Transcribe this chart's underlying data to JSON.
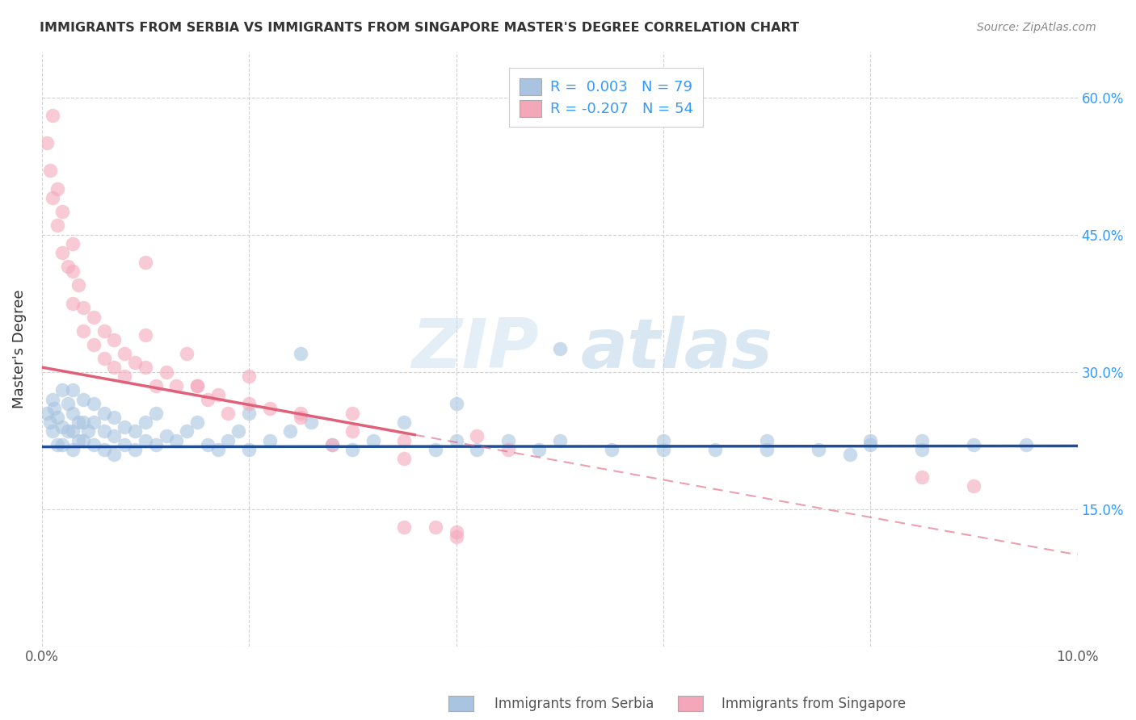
{
  "title": "IMMIGRANTS FROM SERBIA VS IMMIGRANTS FROM SINGAPORE MASTER'S DEGREE CORRELATION CHART",
  "source": "Source: ZipAtlas.com",
  "ylabel": "Master's Degree",
  "x_min": 0.0,
  "x_max": 0.1,
  "y_min": 0.0,
  "y_max": 0.65,
  "x_ticks": [
    0.0,
    0.02,
    0.04,
    0.06,
    0.08,
    0.1
  ],
  "y_ticks": [
    0.0,
    0.15,
    0.3,
    0.45,
    0.6
  ],
  "serbia_R": 0.003,
  "serbia_N": 79,
  "singapore_R": -0.207,
  "singapore_N": 54,
  "serbia_color": "#a8c4e0",
  "singapore_color": "#f4a7b9",
  "serbia_line_color": "#1f4e96",
  "singapore_line_color": "#e0607a",
  "serbia_scatter_x": [
    0.0005,
    0.0008,
    0.001,
    0.001,
    0.0012,
    0.0015,
    0.0015,
    0.002,
    0.002,
    0.002,
    0.0025,
    0.0025,
    0.003,
    0.003,
    0.003,
    0.003,
    0.0035,
    0.0035,
    0.004,
    0.004,
    0.004,
    0.0045,
    0.005,
    0.005,
    0.005,
    0.006,
    0.006,
    0.006,
    0.007,
    0.007,
    0.007,
    0.008,
    0.008,
    0.009,
    0.009,
    0.01,
    0.01,
    0.011,
    0.011,
    0.012,
    0.013,
    0.014,
    0.015,
    0.016,
    0.017,
    0.018,
    0.019,
    0.02,
    0.02,
    0.022,
    0.024,
    0.025,
    0.026,
    0.028,
    0.03,
    0.032,
    0.035,
    0.038,
    0.04,
    0.042,
    0.045,
    0.048,
    0.05,
    0.055,
    0.06,
    0.065,
    0.07,
    0.075,
    0.08,
    0.085,
    0.04,
    0.05,
    0.06,
    0.07,
    0.08,
    0.085,
    0.09,
    0.095,
    0.078
  ],
  "serbia_scatter_y": [
    0.255,
    0.245,
    0.27,
    0.235,
    0.26,
    0.22,
    0.25,
    0.28,
    0.24,
    0.22,
    0.265,
    0.235,
    0.28,
    0.255,
    0.235,
    0.215,
    0.245,
    0.225,
    0.27,
    0.245,
    0.225,
    0.235,
    0.265,
    0.245,
    0.22,
    0.255,
    0.235,
    0.215,
    0.25,
    0.23,
    0.21,
    0.24,
    0.22,
    0.235,
    0.215,
    0.245,
    0.225,
    0.255,
    0.22,
    0.23,
    0.225,
    0.235,
    0.245,
    0.22,
    0.215,
    0.225,
    0.235,
    0.255,
    0.215,
    0.225,
    0.235,
    0.32,
    0.245,
    0.22,
    0.215,
    0.225,
    0.245,
    0.215,
    0.225,
    0.215,
    0.225,
    0.215,
    0.225,
    0.215,
    0.225,
    0.215,
    0.225,
    0.215,
    0.225,
    0.225,
    0.265,
    0.325,
    0.215,
    0.215,
    0.22,
    0.215,
    0.22,
    0.22,
    0.21
  ],
  "singapore_scatter_x": [
    0.0005,
    0.0008,
    0.001,
    0.001,
    0.0015,
    0.0015,
    0.002,
    0.002,
    0.0025,
    0.003,
    0.003,
    0.003,
    0.0035,
    0.004,
    0.004,
    0.005,
    0.005,
    0.006,
    0.006,
    0.007,
    0.007,
    0.008,
    0.008,
    0.009,
    0.01,
    0.01,
    0.011,
    0.012,
    0.013,
    0.014,
    0.015,
    0.016,
    0.017,
    0.018,
    0.02,
    0.022,
    0.025,
    0.028,
    0.03,
    0.035,
    0.038,
    0.04,
    0.042,
    0.045,
    0.035,
    0.04,
    0.01,
    0.015,
    0.02,
    0.025,
    0.03,
    0.035,
    0.09,
    0.085
  ],
  "singapore_scatter_y": [
    0.55,
    0.52,
    0.58,
    0.49,
    0.5,
    0.46,
    0.475,
    0.43,
    0.415,
    0.44,
    0.41,
    0.375,
    0.395,
    0.37,
    0.345,
    0.36,
    0.33,
    0.345,
    0.315,
    0.335,
    0.305,
    0.32,
    0.295,
    0.31,
    0.34,
    0.305,
    0.285,
    0.3,
    0.285,
    0.32,
    0.285,
    0.27,
    0.275,
    0.255,
    0.265,
    0.26,
    0.25,
    0.22,
    0.235,
    0.225,
    0.13,
    0.125,
    0.23,
    0.215,
    0.13,
    0.12,
    0.42,
    0.285,
    0.295,
    0.255,
    0.255,
    0.205,
    0.175,
    0.185
  ],
  "serbia_line_y0": 0.218,
  "serbia_line_y1": 0.219,
  "singapore_line_x_solid_end": 0.036,
  "singapore_line_y0": 0.305,
  "singapore_line_y1": 0.1,
  "watermark_zip": "ZIP",
  "watermark_atlas": "atlas"
}
